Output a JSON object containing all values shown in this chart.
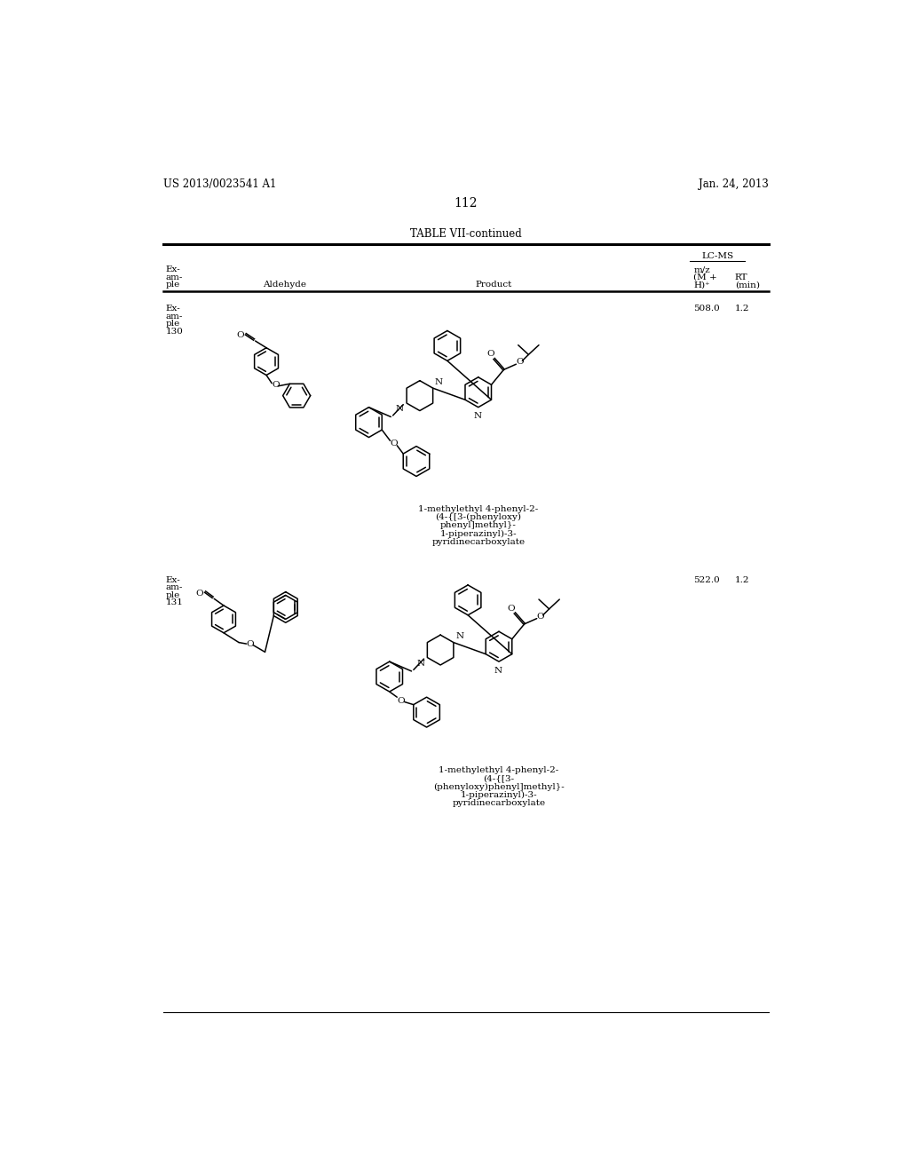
{
  "patent_left": "US 2013/0023541 A1",
  "patent_right": "Jan. 24, 2013",
  "page_number": "112",
  "table_title": "TABLE VII-continued",
  "background_color": "#ffffff",
  "text_color": "#000000",
  "row1_example": [
    "Ex-",
    "am-",
    "ple",
    "130"
  ],
  "row1_mz": "508.0",
  "row1_rt": "1.2",
  "row1_name": [
    "1-methylethyl 4-phenyl-2-",
    "(4-{[3-(phenyloxy)",
    "phenyl]methyl}-",
    "1-piperazinyl)-3-",
    "pyridinecarboxylate"
  ],
  "row2_example": [
    "Ex-",
    "am-",
    "ple",
    "131"
  ],
  "row2_mz": "522.0",
  "row2_rt": "1.2",
  "row2_name": [
    "1-methylethyl 4-phenyl-2-",
    "(4-{[3-",
    "(phenyloxy)phenyl]methyl}-",
    "1-piperazinyl)-3-",
    "pyridinecarboxylate"
  ]
}
